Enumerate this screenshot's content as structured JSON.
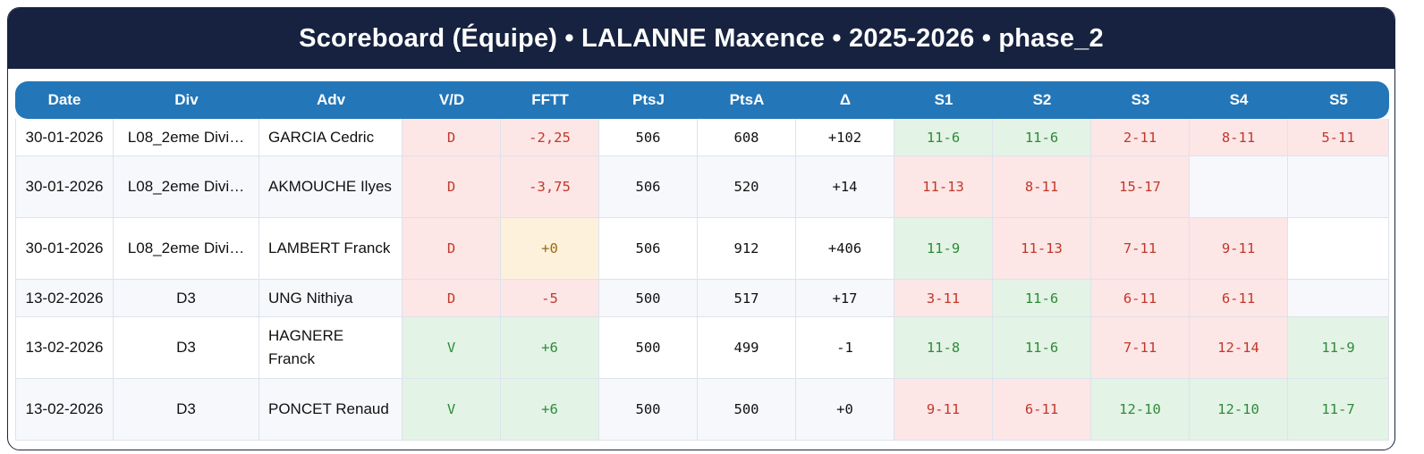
{
  "title": "Scoreboard (Équipe) • LALANNE Maxence • 2025-2026 • phase_2",
  "colors": {
    "title_bg": "#16223f",
    "header_bg": "#2376b8",
    "win_bg": "#e3f3e5",
    "win_text": "#2e8b3a",
    "loss_bg": "#fde6e6",
    "loss_text": "#c0392b",
    "neutral_bg": "#fdf1dc",
    "neutral_text": "#9a6a12"
  },
  "columns": [
    "Date",
    "Div",
    "Adv",
    "V/D",
    "FFTT",
    "PtsJ",
    "PtsA",
    "Δ",
    "S1",
    "S2",
    "S3",
    "S4",
    "S5"
  ],
  "rows": [
    {
      "date": "30-01-2026",
      "div": "L08_2eme Divi…",
      "adv": "GARCIA Cedric",
      "vd": "D",
      "vd_status": "loss",
      "fftt": "-2,25",
      "fftt_status": "loss",
      "ptsj": "506",
      "ptsa": "608",
      "delta": "+102",
      "sets": [
        {
          "score": "11-6",
          "status": "win"
        },
        {
          "score": "11-6",
          "status": "win"
        },
        {
          "score": "2-11",
          "status": "loss"
        },
        {
          "score": "8-11",
          "status": "loss"
        },
        {
          "score": "5-11",
          "status": "loss"
        }
      ]
    },
    {
      "date": "30-01-2026",
      "div": "L08_2eme Divi…",
      "adv": "AKMOUCHE Ilyes",
      "vd": "D",
      "vd_status": "loss",
      "fftt": "-3,75",
      "fftt_status": "loss",
      "ptsj": "506",
      "ptsa": "520",
      "delta": "+14",
      "sets": [
        {
          "score": "11-13",
          "status": "loss"
        },
        {
          "score": "8-11",
          "status": "loss"
        },
        {
          "score": "15-17",
          "status": "loss"
        },
        {
          "score": "",
          "status": "empty"
        },
        {
          "score": "",
          "status": "empty"
        }
      ]
    },
    {
      "date": "30-01-2026",
      "div": "L08_2eme Divi…",
      "adv": "LAMBERT Franck",
      "vd": "D",
      "vd_status": "loss",
      "fftt": "+0",
      "fftt_status": "neutral",
      "ptsj": "506",
      "ptsa": "912",
      "delta": "+406",
      "sets": [
        {
          "score": "11-9",
          "status": "win"
        },
        {
          "score": "11-13",
          "status": "loss"
        },
        {
          "score": "7-11",
          "status": "loss"
        },
        {
          "score": "9-11",
          "status": "loss"
        },
        {
          "score": "",
          "status": "empty"
        }
      ]
    },
    {
      "date": "13-02-2026",
      "div": "D3",
      "adv": "UNG Nithiya",
      "vd": "D",
      "vd_status": "loss",
      "fftt": "-5",
      "fftt_status": "loss",
      "ptsj": "500",
      "ptsa": "517",
      "delta": "+17",
      "sets": [
        {
          "score": "3-11",
          "status": "loss"
        },
        {
          "score": "11-6",
          "status": "win"
        },
        {
          "score": "6-11",
          "status": "loss"
        },
        {
          "score": "6-11",
          "status": "loss"
        },
        {
          "score": "",
          "status": "empty"
        }
      ]
    },
    {
      "date": "13-02-2026",
      "div": "D3",
      "adv": "HAGNERE Franck",
      "vd": "V",
      "vd_status": "win",
      "fftt": "+6",
      "fftt_status": "win",
      "ptsj": "500",
      "ptsa": "499",
      "delta": "-1",
      "sets": [
        {
          "score": "11-8",
          "status": "win"
        },
        {
          "score": "11-6",
          "status": "win"
        },
        {
          "score": "7-11",
          "status": "loss"
        },
        {
          "score": "12-14",
          "status": "loss"
        },
        {
          "score": "11-9",
          "status": "win"
        }
      ]
    },
    {
      "date": "13-02-2026",
      "div": "D3",
      "adv": "PONCET Renaud",
      "vd": "V",
      "vd_status": "win",
      "fftt": "+6",
      "fftt_status": "win",
      "ptsj": "500",
      "ptsa": "500",
      "delta": "+0",
      "sets": [
        {
          "score": "9-11",
          "status": "loss"
        },
        {
          "score": "6-11",
          "status": "loss"
        },
        {
          "score": "12-10",
          "status": "win"
        },
        {
          "score": "12-10",
          "status": "win"
        },
        {
          "score": "11-7",
          "status": "win"
        }
      ]
    }
  ]
}
